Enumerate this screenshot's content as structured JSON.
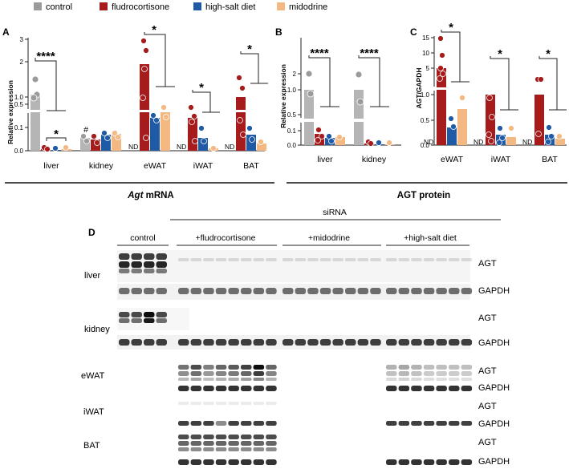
{
  "legend": [
    {
      "label": "control",
      "color": "#9b9b9b"
    },
    {
      "label": "fludrocortisone",
      "color": "#a61c1c"
    },
    {
      "label": "high-salt diet",
      "color": "#1f5aa6"
    },
    {
      "label": "midodrine",
      "color": "#f4b882"
    }
  ],
  "colors": {
    "control": "#9b9b9b",
    "fludrocortisone": "#a61c1c",
    "high_salt": "#1f5aa6",
    "midodrine": "#f4b882"
  },
  "chart_data": [
    {
      "panel": "A",
      "type": "bar",
      "ylabel": "Relative expression",
      "axis": "broken",
      "yticks_lower": [
        "0.0",
        "0.1"
      ],
      "yticks_upper": [
        "0.5",
        "1.0",
        "2",
        "3"
      ],
      "categories": [
        "liver",
        "kidney",
        "eWAT",
        "iWAT",
        "BAT"
      ],
      "series": [
        {
          "name": "control",
          "values": [
            0.92,
            0.055,
            null,
            null,
            null
          ],
          "not_detected": [
            false,
            false,
            true,
            true,
            true
          ]
        },
        {
          "name": "fludrocortisone",
          "values": [
            0.01,
            0.05,
            1.9,
            0.45,
            0.95
          ]
        },
        {
          "name": "high-salt diet",
          "values": [
            0.005,
            0.07,
            0.33,
            0.06,
            0.06
          ]
        },
        {
          "name": "midodrine",
          "values": [
            0.015,
            0.075,
            0.45,
            0.01,
            0.025
          ]
        }
      ],
      "annotations": [
        "****",
        "*",
        "#",
        "*",
        "*",
        "*",
        "ND",
        "ND",
        "ND"
      ],
      "group_label": "Agt mRNA"
    },
    {
      "panel": "B",
      "type": "bar",
      "ylabel": "Relative expression",
      "axis": "broken",
      "yticks_lower": [
        "0.0",
        "0.1"
      ],
      "yticks_upper": [
        "0.5",
        "1.0",
        "2"
      ],
      "categories": [
        "liver",
        "kidney"
      ],
      "series": [
        {
          "name": "control",
          "values": [
            0.95,
            0.9
          ]
        },
        {
          "name": "fludrocortisone",
          "values": [
            0.06,
            0.008
          ]
        },
        {
          "name": "high-salt diet",
          "values": [
            0.03,
            0.004
          ]
        },
        {
          "name": "midodrine",
          "values": [
            0.035,
            0.005
          ]
        }
      ],
      "annotations": [
        "****",
        "****"
      ],
      "group_label": "AGT protein"
    },
    {
      "panel": "C",
      "type": "bar",
      "ylabel": "AGT/GAPDH",
      "axis": "broken",
      "yticks_lower": [
        "0.0",
        "0.5",
        "1.0"
      ],
      "yticks_upper": [
        "5",
        "10",
        "15"
      ],
      "categories": [
        "eWAT",
        "iWAT",
        "BAT"
      ],
      "series": [
        {
          "name": "control",
          "values": [
            null,
            null,
            null
          ],
          "not_detected": [
            true,
            true,
            true
          ]
        },
        {
          "name": "fludrocortisone",
          "values": [
            5,
            1.0,
            1.0
          ]
        },
        {
          "name": "high-salt diet",
          "values": [
            0.35,
            0.2,
            0.2
          ]
        },
        {
          "name": "midodrine",
          "values": [
            0.7,
            0.15,
            0.12
          ]
        }
      ],
      "annotations": [
        "*",
        "*",
        "*",
        "ND",
        "ND",
        "ND"
      ]
    }
  ],
  "panels": {
    "A": {
      "label": "A",
      "ylabel": "Relative expression",
      "yl": [
        "0.0",
        "0.1"
      ],
      "yu": [
        "0.5",
        "1.0",
        "2",
        "3"
      ],
      "cats": [
        "liver",
        "kidney",
        "eWAT",
        "iWAT",
        "BAT"
      ],
      "stars": [
        "****",
        "*",
        "*",
        "*",
        "*"
      ],
      "hash": "#",
      "nd": "ND"
    },
    "B": {
      "label": "B",
      "ylabel": "Relative expression",
      "yl": [
        "0.0",
        "0.1"
      ],
      "yu": [
        "0.5",
        "1.0",
        "2"
      ],
      "cats": [
        "liver",
        "kidney"
      ],
      "stars": [
        "****",
        "****"
      ]
    },
    "C": {
      "label": "C",
      "ylabel": "AGT/GAPDH",
      "yl": [
        "0.0",
        "0.5",
        "1.0"
      ],
      "yu": [
        "5",
        "10",
        "15"
      ],
      "cats": [
        "eWAT",
        "iWAT",
        "BAT"
      ],
      "stars": [
        "*",
        "*",
        "*"
      ],
      "nd": "ND"
    }
  },
  "groups": {
    "mrna_italic": "Agt",
    "mrna_rest": " mRNA",
    "protein": "AGT protein"
  },
  "blot": {
    "label": "D",
    "siRNA": "siRNA",
    "groups": [
      "control",
      "+fludrocortisone",
      "+midodrine",
      "+high-salt diet"
    ],
    "tissues": [
      "liver",
      "kidney",
      "eWAT",
      "iWAT",
      "BAT"
    ],
    "rows": [
      "AGT",
      "GAPDH",
      "AGT",
      "GAPDH",
      "AGT",
      "GAPDH",
      "AGT",
      "GAPDH",
      "AGT",
      "GAPDH"
    ]
  }
}
